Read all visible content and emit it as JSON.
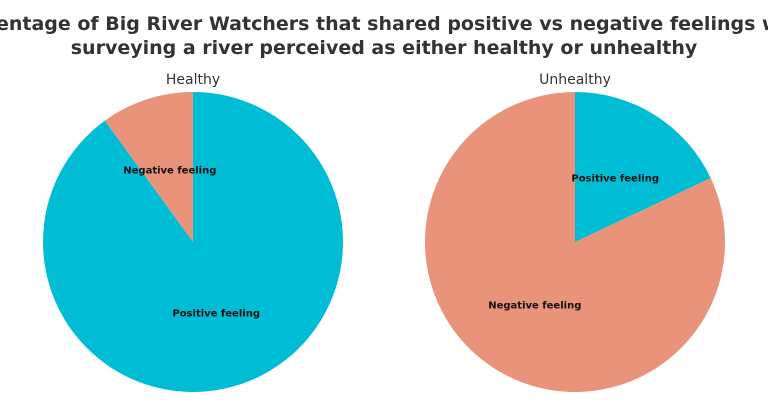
{
  "title": "Percentage of Big River Watchers that shared positive vs negative feelings when surveying a river perceived as either healthy or unhealthy",
  "title_lines": [
    "Percentage of Big River Watchers that shared positive vs negative feelings when",
    "surveying a river perceived as either healthy or unhealthy"
  ],
  "chart_data": [
    {
      "type": "pie",
      "title": "Healthy",
      "categories": [
        "Positive feeling",
        "Negative feeling"
      ],
      "values": [
        90,
        10
      ],
      "colors": [
        "#00bcd4",
        "#e8937a"
      ]
    },
    {
      "type": "pie",
      "title": "Unhealthy",
      "categories": [
        "Positive feeling",
        "Negative feeling"
      ],
      "values": [
        18,
        82
      ],
      "colors": [
        "#00bcd4",
        "#e8937a"
      ]
    }
  ]
}
